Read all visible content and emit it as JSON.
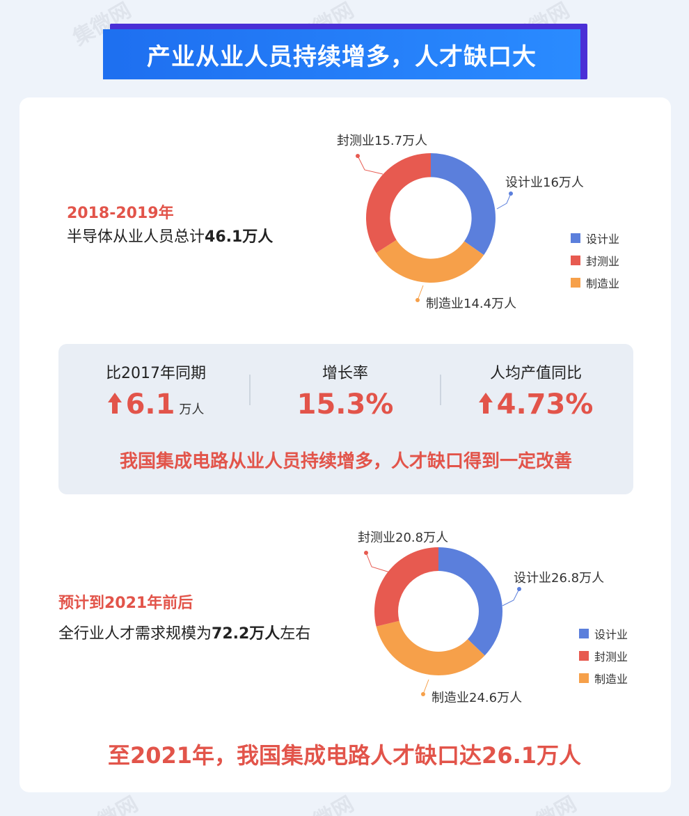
{
  "header": {
    "title": "产业从业人员持续增多，人才缺口大"
  },
  "watermark": {
    "text": "集微网"
  },
  "section1": {
    "period": "2018-2019年",
    "text_prefix": "半导体从业人员总计",
    "text_bold": "46.1万人"
  },
  "stats": {
    "items": [
      {
        "label": "比2017年同期",
        "value": "6.1",
        "unit": "万人",
        "arrow": true
      },
      {
        "label": "增长率",
        "value": "15.3%",
        "unit": "",
        "arrow": false
      },
      {
        "label": "人均产值同比",
        "value": "4.73%",
        "unit": "",
        "arrow": true
      }
    ],
    "conclusion": "我国集成电路从业人员持续增多，人才缺口得到一定改善"
  },
  "section2": {
    "period": "预计到2021年前后",
    "text_prefix": "全行业人才需求规模为",
    "text_bold": "72.2万人",
    "text_suffix": "左右"
  },
  "bottom": {
    "conclusion": "至2021年，我国集成电路人才缺口达26.1万人"
  },
  "colors": {
    "design": "#5b7fdc",
    "packaging": "#e75a50",
    "manufacturing": "#f6a04a",
    "accent": "#e2544a"
  },
  "chart_data": [
    {
      "type": "pie",
      "title": "",
      "categories": [
        "设计业",
        "封测业",
        "制造业"
      ],
      "values": [
        16,
        15.7,
        14.4
      ],
      "labels": [
        "设计业16万人",
        "封测业15.7万人",
        "制造业14.4万人"
      ],
      "legend": [
        "设计业",
        "封测业",
        "制造业"
      ],
      "legend_position": "right"
    },
    {
      "type": "pie",
      "title": "",
      "categories": [
        "设计业",
        "封测业",
        "制造业"
      ],
      "values": [
        26.8,
        20.8,
        24.6
      ],
      "labels": [
        "设计业26.8万人",
        "封测业20.8万人",
        "制造业24.6万人"
      ],
      "legend": [
        "设计业",
        "封测业",
        "制造业"
      ],
      "legend_position": "right"
    }
  ]
}
